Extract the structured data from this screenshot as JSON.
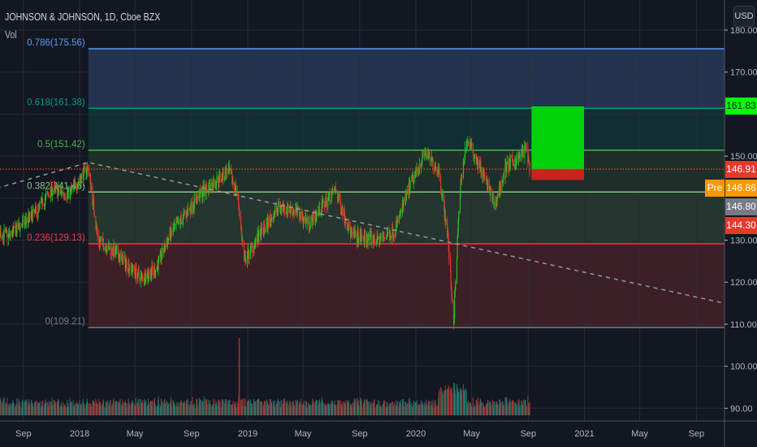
{
  "header": {
    "title": "JOHNSON & JOHNSON, 1D, Cboe BZX",
    "volume_label": "Vol",
    "currency_button": "USD"
  },
  "colors": {
    "up": "#26c322",
    "down": "#e5392c",
    "vol_up": "#1f8079",
    "vol_down": "#a93a33",
    "background": "#131722"
  },
  "chart_data": {
    "type": "candlestick",
    "symbol": "JOHNSON & JOHNSON",
    "interval": "1D",
    "exchange": "Cboe BZX",
    "ylim": [
      88,
      182
    ],
    "y_ticks": [
      "180.00",
      "170.00",
      "150.00",
      "130.00",
      "120.00",
      "110.00",
      "100.00",
      "90.00"
    ],
    "y_tick_values": [
      180,
      170,
      150,
      130,
      120,
      110,
      100,
      90
    ],
    "x_ticks": [
      {
        "label": "Sep",
        "date": "2017-09-01"
      },
      {
        "label": "2018",
        "date": "2018-01-01"
      },
      {
        "label": "May",
        "date": "2018-05-01"
      },
      {
        "label": "Sep",
        "date": "2018-09-01"
      },
      {
        "label": "2019",
        "date": "2019-01-01"
      },
      {
        "label": "May",
        "date": "2019-05-01"
      },
      {
        "label": "Sep",
        "date": "2019-09-01"
      },
      {
        "label": "2020",
        "date": "2020-01-01"
      },
      {
        "label": "May",
        "date": "2020-05-01"
      },
      {
        "label": "Sep",
        "date": "2020-09-01"
      },
      {
        "label": "2021",
        "date": "2021-01-01"
      },
      {
        "label": "May",
        "date": "2021-05-01"
      },
      {
        "label": "Sep",
        "date": "2021-09-01"
      }
    ],
    "price_path": [
      [
        "2017-06-01",
        133
      ],
      [
        "2017-08-01",
        131
      ],
      [
        "2017-10-01",
        137
      ],
      [
        "2017-11-01",
        142
      ],
      [
        "2017-12-10",
        141
      ],
      [
        "2018-01-20",
        147.5
      ],
      [
        "2018-02-10",
        130
      ],
      [
        "2018-03-20",
        127
      ],
      [
        "2018-05-15",
        121
      ],
      [
        "2018-06-15",
        123
      ],
      [
        "2018-07-15",
        131
      ],
      [
        "2018-09-20",
        141
      ],
      [
        "2018-11-20",
        146.5
      ],
      [
        "2018-12-10",
        141
      ],
      [
        "2018-12-24",
        125
      ],
      [
        "2019-01-20",
        130
      ],
      [
        "2019-03-10",
        138
      ],
      [
        "2019-04-15",
        137
      ],
      [
        "2019-05-15",
        134
      ],
      [
        "2019-07-10",
        142
      ],
      [
        "2019-08-15",
        131
      ],
      [
        "2019-10-10",
        130
      ],
      [
        "2019-11-15",
        132
      ],
      [
        "2019-12-20",
        143
      ],
      [
        "2020-01-20",
        151
      ],
      [
        "2020-02-20",
        146.5
      ],
      [
        "2020-03-10",
        131
      ],
      [
        "2020-03-23",
        110.5
      ],
      [
        "2020-04-05",
        141
      ],
      [
        "2020-04-20",
        154
      ],
      [
        "2020-05-15",
        148.5
      ],
      [
        "2020-06-05",
        143
      ],
      [
        "2020-06-20",
        138
      ],
      [
        "2020-07-15",
        147.5
      ],
      [
        "2020-08-10",
        149.5
      ],
      [
        "2020-08-28",
        152
      ],
      [
        "2020-09-04",
        147
      ]
    ],
    "fibonacci": [
      {
        "level": "0.786",
        "price": 175.56,
        "label": "0.786(175.56)",
        "color": "#5b9cf6",
        "fill": "#243450"
      },
      {
        "level": "0.618",
        "price": 161.38,
        "label": "0.618(161.38)",
        "color": "#089981",
        "fill": "#112e33"
      },
      {
        "level": "0.5",
        "price": 151.42,
        "label": "0.5(151.42)",
        "color": "#4caf50",
        "fill": "#1d2f28"
      },
      {
        "level": "0.382",
        "price": 141.46,
        "label": "0.382(141.46)",
        "color": "#81c784",
        "fill": "#25352f"
      },
      {
        "level": "0.236",
        "price": 129.13,
        "label": "0.236(129.13)",
        "color": "#f23645",
        "fill": "#3d1f27"
      },
      {
        "level": "0",
        "price": 109.21,
        "label": "0(109.21)",
        "color": "#787b86",
        "fill": null
      }
    ],
    "position_tool": {
      "entry": 146.91,
      "target": 161.83,
      "stop": 144.3,
      "start": "2020-09-08",
      "end": "2020-12-31"
    },
    "trendline": [
      [
        "2017-06-01",
        141.3
      ],
      [
        "2018-01-20",
        148.5
      ],
      [
        "2021-10-31",
        115
      ]
    ],
    "price_tags": [
      {
        "value": "161.83",
        "price": 161.83,
        "bg": "#00ff00",
        "fg": "#131722"
      },
      {
        "value": "146.91",
        "price": 146.91,
        "bg": "#e5392c",
        "fg": "#ffffff"
      },
      {
        "value": "146.86",
        "price": 146.86,
        "bg": "#ff9800",
        "fg": "#ffffff",
        "prefix": "Pre"
      },
      {
        "value": "146.80",
        "price": 146.8,
        "bg": "#787b86",
        "fg": "#ffffff"
      },
      {
        "value": "144.30",
        "price": 144.3,
        "bg": "#e5392c",
        "fg": "#ffffff"
      }
    ]
  }
}
